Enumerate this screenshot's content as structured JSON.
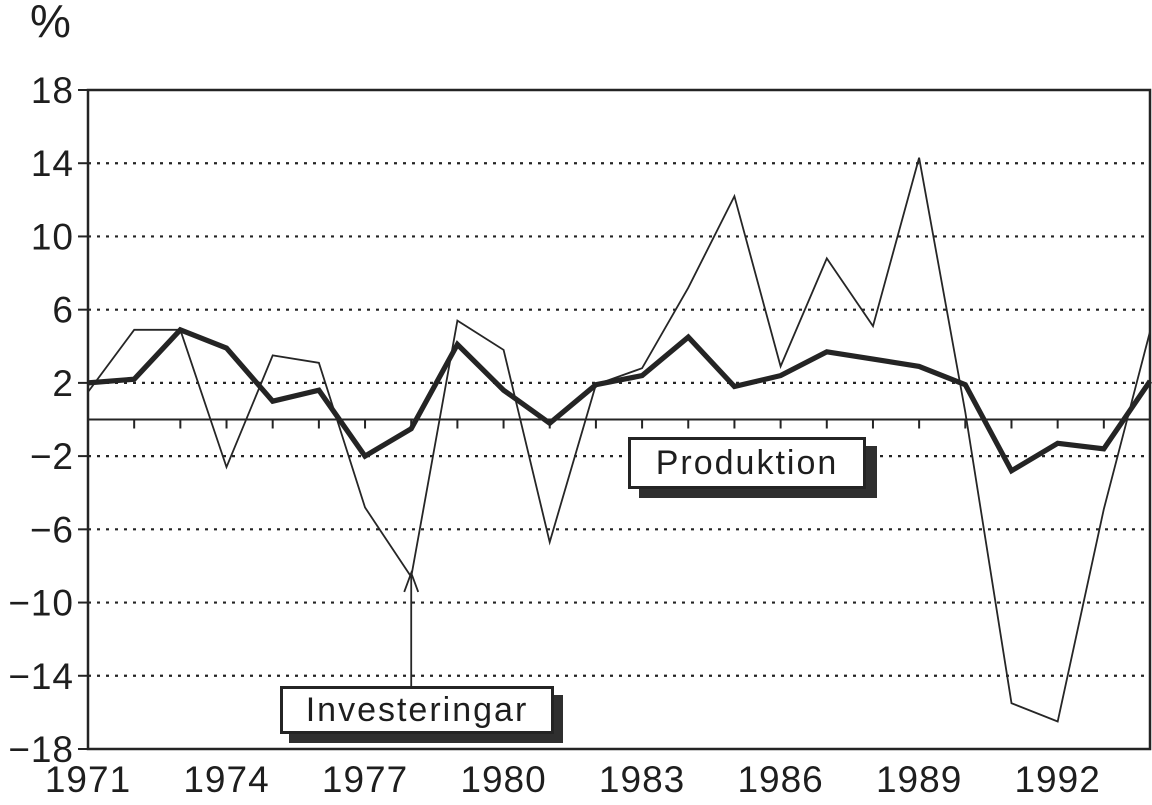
{
  "colors": {
    "ink": "#242424",
    "background": "#ffffff",
    "shadow": "#2f2f2f"
  },
  "chart_data": {
    "type": "line",
    "title": "",
    "ylabel": "%",
    "xlabel": "",
    "ylim": [
      -18,
      18
    ],
    "grid": "dotted horizontal lines at every labeled y tick, solid zero axis with yearly tick marks",
    "legend_position": "boxed labels inside plot",
    "x": [
      1971,
      1972,
      1973,
      1974,
      1975,
      1976,
      1977,
      1978,
      1979,
      1980,
      1981,
      1982,
      1983,
      1984,
      1985,
      1986,
      1987,
      1988,
      1989,
      1990,
      1991,
      1992,
      1993,
      1994
    ],
    "x_tick_labels": [
      1971,
      1974,
      1977,
      1980,
      1983,
      1986,
      1989,
      1992
    ],
    "y_ticks": [
      18,
      14,
      10,
      6,
      2,
      -2,
      -6,
      -10,
      -14,
      -18
    ],
    "series": [
      {
        "name": "Produktion",
        "style": "thick",
        "values": [
          2.0,
          2.2,
          4.9,
          3.9,
          1.0,
          1.6,
          -2.0,
          -0.5,
          4.1,
          1.6,
          -0.2,
          1.9,
          2.4,
          4.5,
          1.8,
          2.4,
          3.7,
          3.3,
          2.9,
          1.9,
          -2.8,
          -1.3,
          -1.6,
          2.1
        ]
      },
      {
        "name": "Investeringar",
        "style": "thin",
        "values": [
          1.5,
          4.9,
          4.9,
          -2.6,
          3.5,
          3.1,
          -4.8,
          -8.6,
          5.4,
          3.8,
          -6.7,
          1.9,
          2.8,
          7.2,
          12.2,
          2.9,
          8.8,
          5.1,
          14.3,
          0.4,
          -15.5,
          -16.5,
          -4.9,
          4.8
        ]
      }
    ],
    "annotations": [
      {
        "label": "Produktion",
        "type": "boxed-label"
      },
      {
        "label": "Investeringar",
        "type": "boxed-label-with-arrow",
        "arrow_points_to": {
          "year": 1978,
          "value": -8.6,
          "series": "Investeringar"
        }
      }
    ]
  }
}
